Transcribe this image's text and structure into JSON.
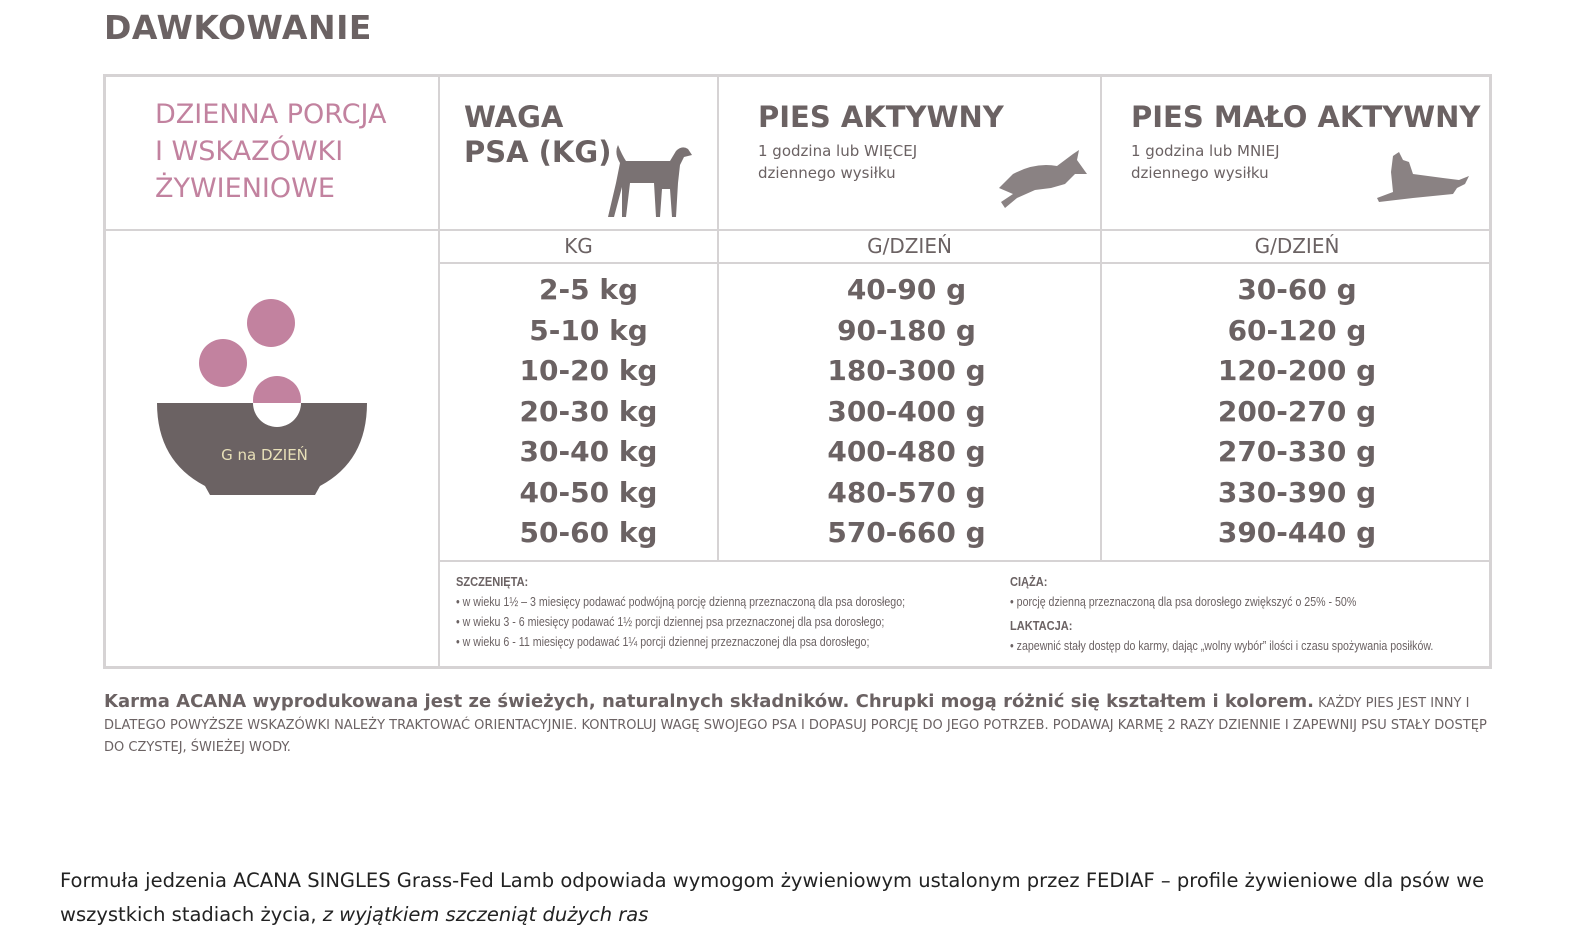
{
  "title": "DAWKOWANIE",
  "table": {
    "intro": [
      "DZIENNA PORCJA",
      "I WSKAZÓWKI",
      "ŻYWIENIOWE"
    ],
    "weight_header": [
      "WAGA",
      "PSA (KG)"
    ],
    "active_header": "PIES AKTYWNY",
    "active_sub": [
      "1 godzina lub WIĘCEJ",
      "dziennego wysiłku"
    ],
    "lazy_header": "PIES MAŁO AKTYWNY",
    "lazy_sub": [
      "1 godzina lub MNIEJ",
      "dziennego wysiłku"
    ],
    "col_units": [
      "KG",
      "G/DZIEŃ",
      "G/DZIEŃ"
    ],
    "bowl_label": "G na DZIEŃ",
    "weights": [
      "2-5 kg",
      "5-10 kg",
      "10-20 kg",
      "20-30 kg",
      "30-40 kg",
      "40-50 kg",
      "50-60 kg"
    ],
    "active": [
      "40-90 g",
      "90-180 g",
      "180-300 g",
      "300-400 g",
      "400-480 g",
      "480-570 g",
      "570-660 g"
    ],
    "lazy": [
      "30-60 g",
      "60-120 g",
      "120-200 g",
      "200-270 g",
      "270-330 g",
      "330-390 g",
      "390-440 g"
    ],
    "colors": {
      "text": "#6b6263",
      "accent": "#c2829f",
      "border": "#d6d3d4"
    }
  },
  "notes": {
    "puppies_title": "SZCZENIĘTA:",
    "puppies": [
      "• w wieku 1½ – 3 miesięcy podawać podwójną porcję dzienną przeznaczoną dla psa dorosłego;",
      "• w wieku 3 - 6 miesięcy podawać 1½ porcji dziennej psa przeznaczonej dla psa dorosłego;",
      "• w wieku 6 - 11 miesięcy podawać 1¼ porcji dziennej przeznaczonej dla psa dorosłego;"
    ],
    "pregnancy_title": "CIĄŻA:",
    "pregnancy": "• porcję dzienną przeznaczoną dla psa dorosłego zwiększyć o 25% - 50%",
    "lactation_title": "LAKTACJA:",
    "lactation": "• zapewnić stały dostęp do karmy, dając „wolny wybór” ilości i czasu spożywania posiłków."
  },
  "footer": {
    "bold": "Karma ACANA wyprodukowana jest ze świeżych, naturalnych składników. Chrupki mogą różnić się kształtem i kolorem.",
    "rest": " KAŻDY PIES JEST INNY I DLATEGO POWYŻSZE WSKAZÓWKI NALEŻY TRAKTOWAĆ ORIENTACYJNIE. KONTROLUJ WAGĘ SWOJEGO PSA I DOPASUJ PORCJĘ DO JEGO POTRZEB. PODAWAJ KARMĘ 2 RAZY DZIENNIE I ZAPEWNIJ PSU STAŁY DOSTĘP DO CZYSTEJ, ŚWIEŻEJ WODY."
  },
  "formula": {
    "text": "Formuła jedzenia ACANA SINGLES Grass-Fed Lamb odpowiada wymogom żywieniowym ustalonym przez FEDIAF – profile żywieniowe dla psów we wszystkich stadiach życia, ",
    "italic": "z wyjątkiem szczeniąt dużych ras"
  }
}
